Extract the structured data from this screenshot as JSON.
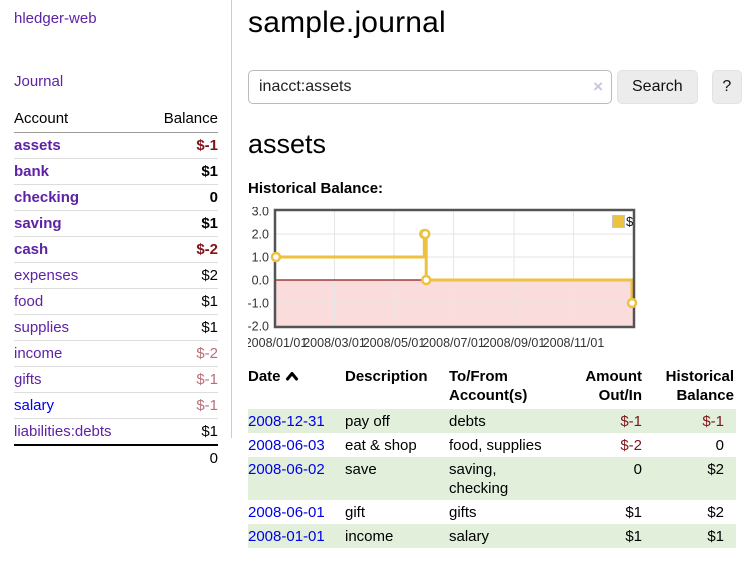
{
  "sidebar": {
    "brand": "hledger-web",
    "nav": {
      "journal_label": "Journal"
    },
    "accounts_table": {
      "headers": {
        "account": "Account",
        "balance": "Balance"
      },
      "rows": [
        {
          "account": "assets",
          "depth": 1,
          "bold": true,
          "link_tone": "purple",
          "balance": "$-1",
          "balance_tone": "negative"
        },
        {
          "account": "bank",
          "depth": 2,
          "bold": true,
          "link_tone": "purple",
          "balance": "$1",
          "balance_tone": "normal"
        },
        {
          "account": "checking",
          "depth": 3,
          "bold": true,
          "link_tone": "purple",
          "balance": "0",
          "balance_tone": "normal"
        },
        {
          "account": "saving",
          "depth": 3,
          "bold": true,
          "link_tone": "purple",
          "balance": "$1",
          "balance_tone": "normal"
        },
        {
          "account": "cash",
          "depth": 2,
          "bold": true,
          "link_tone": "purple",
          "balance": "$-2",
          "balance_tone": "negative"
        },
        {
          "account": "expenses",
          "depth": 1,
          "bold": false,
          "link_tone": "purple",
          "balance": "$2",
          "balance_tone": "normal"
        },
        {
          "account": "food",
          "depth": 2,
          "bold": false,
          "link_tone": "purple",
          "balance": "$1",
          "balance_tone": "normal"
        },
        {
          "account": "supplies",
          "depth": 2,
          "bold": false,
          "link_tone": "purple",
          "balance": "$1",
          "balance_tone": "normal"
        },
        {
          "account": "income",
          "depth": 1,
          "bold": false,
          "link_tone": "purple",
          "balance": "$-2",
          "balance_tone": "negative-light"
        },
        {
          "account": "gifts",
          "depth": 2,
          "bold": false,
          "link_tone": "purple",
          "balance": "$-1",
          "balance_tone": "negative-light"
        },
        {
          "account": "salary",
          "depth": 2,
          "bold": false,
          "link_tone": "blue",
          "balance": "$-1",
          "balance_tone": "negative-light"
        },
        {
          "account": "liabilities:debts",
          "depth": 1,
          "bold": false,
          "link_tone": "purple",
          "balance": "$1",
          "balance_tone": "normal"
        }
      ],
      "total": "0"
    }
  },
  "main": {
    "title": "sample.journal",
    "search": {
      "value": "inacct:assets",
      "clear_label": "×",
      "button_label": "Search",
      "help_label": "?"
    },
    "account_heading": "assets",
    "chart_heading": "Historical Balance:"
  },
  "chart_data": {
    "type": "line",
    "step": true,
    "title": "Historical Balance:",
    "series": [
      {
        "name": "$",
        "color": "#EDC240",
        "points": [
          [
            "2008-01-01",
            1
          ],
          [
            "2008-06-01",
            2
          ],
          [
            "2008-06-02",
            2
          ],
          [
            "2008-06-03",
            0
          ],
          [
            "2008-12-31",
            -1
          ]
        ]
      }
    ],
    "xlim": [
      "2008-01-01",
      "2009-01-01"
    ],
    "ylim": [
      -2,
      3
    ],
    "yticks": [
      {
        "v": 3,
        "label": "3.0"
      },
      {
        "v": 2,
        "label": "2.0"
      },
      {
        "v": 1,
        "label": "1.0"
      },
      {
        "v": 0,
        "label": "0.0"
      },
      {
        "v": -1,
        "label": "-1.0"
      },
      {
        "v": -2,
        "label": "-2.0"
      }
    ],
    "xticks": [
      {
        "date": "2008-01-01",
        "label": "2008/01/01"
      },
      {
        "date": "2008-03-01",
        "label": "2008/03/01"
      },
      {
        "date": "2008-05-01",
        "label": "2008/05/01"
      },
      {
        "date": "2008-07-01",
        "label": "2008/07/01"
      },
      {
        "date": "2008-09-01",
        "label": "2008/09/01"
      },
      {
        "date": "2008-11-01",
        "label": "2008/11/01"
      }
    ],
    "grid": true,
    "legend": {
      "label": "$",
      "position": "top-right",
      "swatch_color": "#EDC240"
    },
    "colors": {
      "border": "#545454",
      "gridline": "#e6e6e6",
      "zero_line": "#8b1a1a",
      "negative_region": "#fbdcdc",
      "marker_fill": "#ffffff"
    }
  },
  "register": {
    "headers": {
      "date": "Date",
      "description": "Description",
      "accounts": "To/From Account(s)",
      "amount": "Amount Out/In",
      "balance": "Historical Balance"
    },
    "sort_icon": "chevron-up",
    "rows": [
      {
        "date": "2008-12-31",
        "description": "pay off",
        "accounts": "debts",
        "amount": "$-1",
        "amount_tone": "negative",
        "balance": "$-1",
        "balance_tone": "negative"
      },
      {
        "date": "2008-06-03",
        "description": "eat & shop",
        "accounts": "food, supplies",
        "amount": "$-2",
        "amount_tone": "negative",
        "balance": "0",
        "balance_tone": "normal"
      },
      {
        "date": "2008-06-02",
        "description": "save",
        "accounts": "saving, checking",
        "amount": "0",
        "amount_tone": "normal",
        "balance": "$2",
        "balance_tone": "normal"
      },
      {
        "date": "2008-06-01",
        "description": "gift",
        "accounts": "gifts",
        "amount": "$1",
        "amount_tone": "normal",
        "balance": "$2",
        "balance_tone": "normal"
      },
      {
        "date": "2008-01-01",
        "description": "income",
        "accounts": "salary",
        "amount": "$1",
        "amount_tone": "normal",
        "balance": "$1",
        "balance_tone": "normal"
      }
    ]
  },
  "colors": {
    "link_purple": "#5e22a6",
    "link_blue": "#0000e6",
    "negative_dark": "#7f1419",
    "negative_light": "#b96f77",
    "row_stripe_green": "#e1efdb",
    "series_yellow": "#EDC240"
  }
}
